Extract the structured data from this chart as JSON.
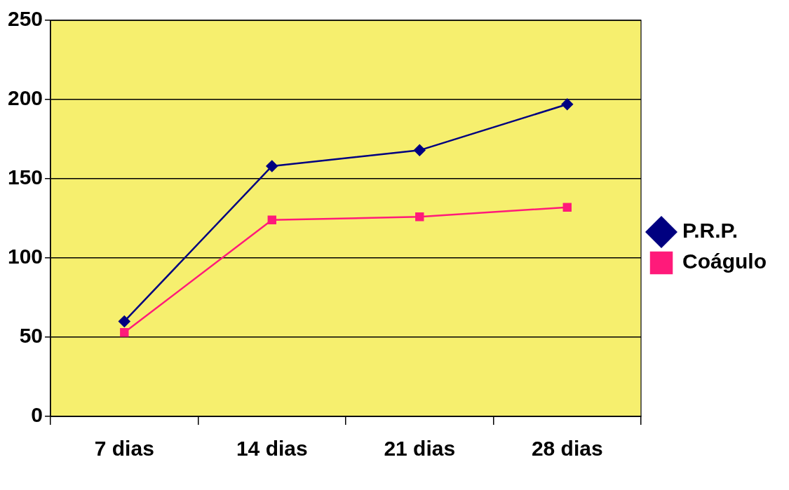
{
  "chart_data": {
    "type": "line",
    "categories": [
      "7 dias",
      "14 dias",
      "21 dias",
      "28 dias"
    ],
    "series": [
      {
        "name": "P.R.P.",
        "color": "#000080",
        "marker": "diamond",
        "values": [
          60,
          158,
          168,
          197
        ]
      },
      {
        "name": "Coágulo",
        "color": "#ff1a7a",
        "marker": "square",
        "values": [
          53,
          124,
          126,
          132
        ]
      }
    ],
    "ylim": [
      0,
      250
    ],
    "yticks": [
      0,
      50,
      100,
      150,
      200,
      250
    ],
    "grid": "y",
    "legend": "right",
    "line_style": "solid"
  }
}
